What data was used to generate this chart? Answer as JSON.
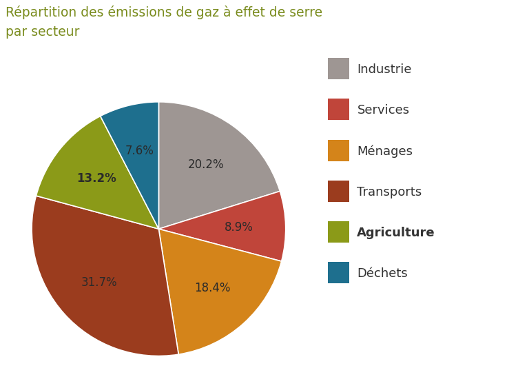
{
  "title_line1": "Répartition des émissions de gaz à effet de serre",
  "title_line2": "par secteur",
  "title_color": "#7a8c1e",
  "title_fontsize": 13.5,
  "labels": [
    "Industrie",
    "Services",
    "Ménages",
    "Transports",
    "Agriculture",
    "Déchets"
  ],
  "values": [
    20.2,
    8.9,
    18.4,
    31.7,
    13.2,
    7.6
  ],
  "colors": [
    "#9e9693",
    "#c0453a",
    "#d4841a",
    "#9b3c1e",
    "#8b9a18",
    "#1e6f8e"
  ],
  "pct_labels": [
    "20.2%",
    "8.9%",
    "18.4%",
    "31.7%",
    "13.2%",
    "7.6%"
  ],
  "pct_text_colors": [
    "#2a2a2a",
    "#2a2a2a",
    "#2a2a2a",
    "#2a2a2a",
    "#2a2a2a",
    "#2a2a2a"
  ],
  "bold_legend": [
    false,
    false,
    false,
    false,
    true,
    false
  ],
  "bold_pct": [
    false,
    false,
    false,
    false,
    true,
    false
  ],
  "bg_color": "#ffffff",
  "startangle": 90,
  "pct_fontsize": 12,
  "legend_fontsize": 13
}
